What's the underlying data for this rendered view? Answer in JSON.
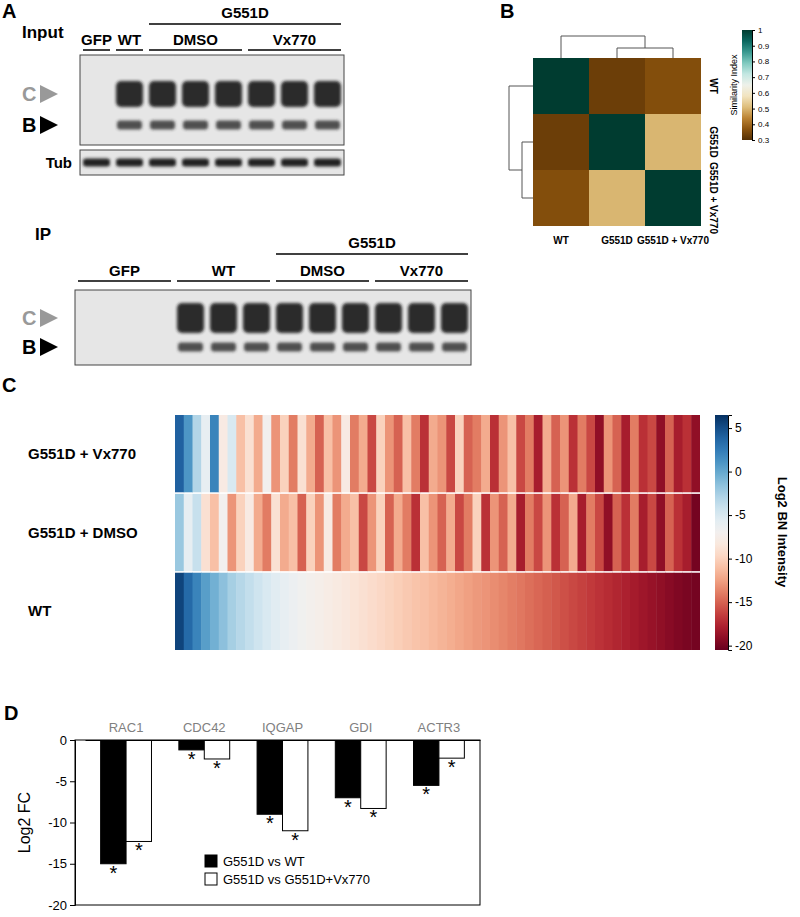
{
  "chart_data": [
    {
      "type": "blot",
      "panel": "A",
      "blots": [
        {
          "label": "Input",
          "groups": [
            {
              "label": "GFP",
              "lanes": 1,
              "empty": true
            },
            {
              "label": "WT",
              "lanes": 1
            },
            {
              "label": "G551D",
              "subgroups": [
                {
                  "label": "DMSO",
                  "lanes": 3
                },
                {
                  "label": "Vx770",
                  "lanes": 3
                }
              ]
            }
          ],
          "markers": [
            {
              "label": "C",
              "color": "#999999"
            },
            {
              "label": "B",
              "color": "#000000"
            }
          ],
          "loading_control": "Tub"
        },
        {
          "label": "IP",
          "groups": [
            {
              "label": "GFP",
              "lanes": 3,
              "empty": true
            },
            {
              "label": "WT",
              "lanes": 3
            },
            {
              "label": "G551D",
              "subgroups": [
                {
                  "label": "DMSO",
                  "lanes": 3
                },
                {
                  "label": "Vx770",
                  "lanes": 3
                }
              ]
            }
          ],
          "markers": [
            {
              "label": "C",
              "color": "#999999"
            },
            {
              "label": "B",
              "color": "#000000"
            }
          ]
        }
      ]
    },
    {
      "type": "heatmap",
      "panel": "B",
      "rows": [
        "WT",
        "G551D",
        "G551D + Vx770"
      ],
      "columns": [
        "WT",
        "G551D",
        "G551D + Vx770"
      ],
      "cells": [
        [
          1,
          0.33,
          0.36
        ],
        [
          0.33,
          1,
          0.5
        ],
        [
          0.36,
          0.5,
          1
        ]
      ],
      "colorbar": {
        "title": "Similarity Index",
        "range": [
          0.3,
          1
        ],
        "ticks": [
          1,
          0.9,
          0.8,
          0.7,
          0.6,
          0.5,
          0.4,
          0.3
        ]
      }
    },
    {
      "type": "heatmap",
      "panel": "C",
      "rows": [
        "G551D + Vx770",
        "G551D + DMSO",
        "WT"
      ],
      "cells": [
        [
          4,
          1,
          -3,
          -6,
          2,
          -8,
          -5,
          -11,
          -9,
          -12,
          -7,
          -13,
          -10,
          -14,
          -9,
          -12,
          -15,
          -11,
          -13,
          -8,
          -14,
          -12,
          -16,
          -10,
          -13,
          -15,
          -11,
          -14,
          -17,
          -12,
          -13,
          -16,
          -10,
          -15,
          -14,
          -12,
          -17,
          -13,
          -11,
          -16,
          -14,
          -18,
          -12,
          -15,
          -13,
          -17,
          -14,
          -16,
          -19,
          -13,
          -15,
          -18,
          -14,
          -17,
          -16,
          -19,
          -15,
          -18,
          -17,
          -19
        ],
        [
          -2,
          -6,
          -4,
          -9,
          -11,
          -7,
          -13,
          -10,
          -8,
          -12,
          -14,
          -9,
          -12,
          -11,
          -15,
          -10,
          -13,
          -8,
          -14,
          -12,
          -11,
          -16,
          -13,
          -10,
          -15,
          -12,
          -14,
          -17,
          -11,
          -13,
          -15,
          -12,
          -16,
          -14,
          -10,
          -17,
          -13,
          -15,
          -12,
          -18,
          -14,
          -16,
          -13,
          -17,
          -15,
          -12,
          -18,
          -14,
          -16,
          -19,
          -15,
          -17,
          -14,
          -18,
          -16,
          -19,
          -15,
          -17,
          -18,
          -20
        ],
        [
          5.5,
          3.5,
          2,
          0.5,
          -0.5,
          -1.5,
          -2.5,
          -3.2,
          -3.8,
          -4.4,
          -5,
          -5.5,
          -6,
          -6.4,
          -6.8,
          -7.2,
          -7.5,
          -7.8,
          -8.1,
          -8.4,
          -8.7,
          -9,
          -9.3,
          -9.6,
          -9.9,
          -10.2,
          -10.5,
          -10.8,
          -11,
          -11.3,
          -11.6,
          -11.9,
          -12.2,
          -12.5,
          -12.8,
          -13,
          -13.3,
          -13.6,
          -13.9,
          -14.2,
          -14.5,
          -14.8,
          -15.1,
          -15.4,
          -15.7,
          -16,
          -16.3,
          -16.6,
          -16.9,
          -17.2,
          -17.5,
          -17.8,
          -18.1,
          -18.4,
          -18.7,
          -19,
          -19.3,
          -19.6,
          -19.8,
          -20
        ]
      ],
      "colorbar": {
        "title": "Log2 BN Intensity",
        "range": [
          -20.5,
          6.5
        ],
        "ticks": [
          5,
          0,
          -5,
          -10,
          -15,
          -20
        ]
      }
    },
    {
      "type": "bar",
      "panel": "D",
      "categories": [
        "RAC1",
        "CDC42",
        "IQGAP",
        "GDI",
        "ACTR3"
      ],
      "series": [
        {
          "name": "G551D vs WT",
          "color": "#000000",
          "values": [
            -15,
            -1.2,
            -9,
            -7,
            -5.5
          ],
          "annotations": [
            "*",
            "*",
            "*",
            "*",
            "*"
          ]
        },
        {
          "name": "G551D vs G551D+Vx770",
          "color": "#ffffff",
          "values": [
            -12.3,
            -2.3,
            -11,
            -8.3,
            -2.2
          ],
          "annotations": [
            "*",
            "*",
            "*",
            "*",
            "*"
          ]
        }
      ],
      "ylabel": "Log2 FC",
      "ylim": [
        -20,
        0
      ],
      "yticks": [
        0,
        -5,
        -10,
        -15,
        -20
      ],
      "legend": "lower left"
    }
  ]
}
